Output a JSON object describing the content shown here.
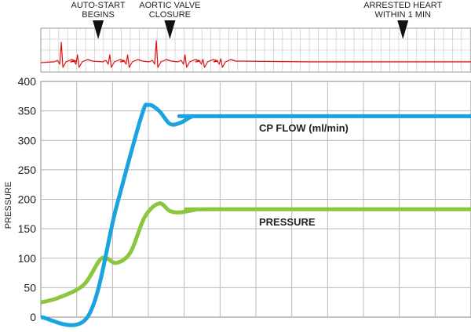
{
  "chart_data": {
    "type": "line",
    "ylabel": "PRESSURE",
    "ylim": [
      0,
      400
    ],
    "yticks": [
      0,
      50,
      100,
      150,
      200,
      250,
      300,
      350,
      400
    ],
    "xlim": [
      0,
      12
    ],
    "grid": true,
    "series": [
      {
        "name": "CP FLOW (ml/min)",
        "color": "#1aa3e0",
        "x": [
          0,
          1.3,
          2.1,
          2.8,
          3.0,
          3.3,
          3.6,
          3.9,
          4.2,
          4.5,
          12
        ],
        "y": [
          0,
          0,
          185,
          340,
          360,
          350,
          328,
          330,
          340,
          341,
          341
        ]
      },
      {
        "name": "PRESSURE",
        "color": "#8cc63f",
        "x": [
          0,
          0.5,
          1.2,
          1.7,
          2.1,
          2.5,
          2.9,
          3.3,
          3.6,
          3.9,
          4.3,
          4.7,
          12
        ],
        "y": [
          25,
          33,
          55,
          100,
          92,
          110,
          170,
          193,
          180,
          178,
          182,
          183,
          183
        ]
      }
    ],
    "ecg": {
      "color": "#e01010",
      "markers": [
        {
          "label_lines": [
            "AUTO-START",
            "BEGINS"
          ],
          "x": 1.6
        },
        {
          "label_lines": [
            "AORTIC VALVE",
            "CLOSURE"
          ],
          "x": 3.6
        },
        {
          "label_lines": [
            "ARRESTED HEART",
            "WITHIN 1 MIN"
          ],
          "x": 10.1
        }
      ]
    }
  }
}
